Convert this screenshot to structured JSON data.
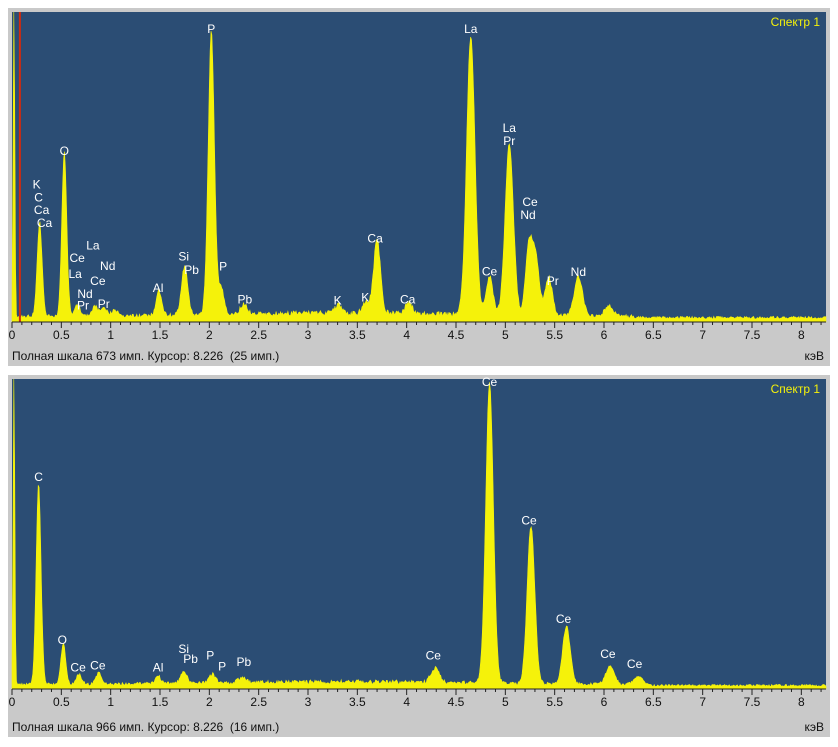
{
  "colors": {
    "plot_bg": "#2b4d74",
    "spectrum": "#f5f20a",
    "peak_label": "#ffffff",
    "title": "#f5f20a",
    "axis_text": "#111111",
    "cursor_line": "#d22a0e"
  },
  "unit_label": "кэВ",
  "chart_data": [
    {
      "type": "area",
      "title": "Спектр 1",
      "xlabel": "кэВ",
      "xlim": [
        0,
        8.25
      ],
      "ylim": [
        0,
        673
      ],
      "x_ticks": [
        0,
        0.5,
        1,
        1.5,
        2,
        2.5,
        3,
        3.5,
        4,
        4.5,
        5,
        5.5,
        6,
        6.5,
        7,
        7.5,
        8
      ],
      "x_tick_labels": [
        "0",
        "0.5",
        "1",
        "1.5",
        "2",
        "2.5",
        "3",
        "3.5",
        "4",
        "4.5",
        "5",
        "5.5",
        "6",
        "6.5",
        "7",
        "7.5",
        "8"
      ],
      "status_text": "Полная шкала 673 имп. Курсор: 8.226  (25 имп.)",
      "cursor_keV": 0.08,
      "peaks": [
        {
          "center": 0.02,
          "height": 700,
          "width": 0.012
        },
        {
          "center": 0.28,
          "height": 205,
          "width": 0.035
        },
        {
          "center": 0.53,
          "height": 355,
          "width": 0.035
        },
        {
          "center": 0.66,
          "height": 25,
          "width": 0.04
        },
        {
          "center": 0.84,
          "height": 22,
          "width": 0.04
        },
        {
          "center": 0.93,
          "height": 20,
          "width": 0.04
        },
        {
          "center": 1.04,
          "height": 14,
          "width": 0.04
        },
        {
          "center": 1.49,
          "height": 55,
          "width": 0.04
        },
        {
          "center": 1.75,
          "height": 105,
          "width": 0.045
        },
        {
          "center": 2.02,
          "height": 615,
          "width": 0.045
        },
        {
          "center": 2.12,
          "height": 60,
          "width": 0.04
        },
        {
          "center": 2.35,
          "height": 22,
          "width": 0.05
        },
        {
          "center": 3.31,
          "height": 18,
          "width": 0.05
        },
        {
          "center": 3.59,
          "height": 24,
          "width": 0.05
        },
        {
          "center": 3.7,
          "height": 160,
          "width": 0.05
        },
        {
          "center": 4.02,
          "height": 25,
          "width": 0.05
        },
        {
          "center": 4.65,
          "height": 605,
          "width": 0.06
        },
        {
          "center": 4.84,
          "height": 82,
          "width": 0.05
        },
        {
          "center": 5.04,
          "height": 370,
          "width": 0.06
        },
        {
          "center": 5.24,
          "height": 150,
          "width": 0.05
        },
        {
          "center": 5.31,
          "height": 120,
          "width": 0.05
        },
        {
          "center": 5.44,
          "height": 85,
          "width": 0.05
        },
        {
          "center": 5.74,
          "height": 85,
          "width": 0.06
        },
        {
          "center": 6.05,
          "height": 22,
          "width": 0.06
        }
      ],
      "baseline": 12,
      "labels": [
        {
          "text": "K",
          "x": 0.25,
          "y": 290
        },
        {
          "text": "C",
          "x": 0.27,
          "y": 262
        },
        {
          "text": "Ca",
          "x": 0.3,
          "y": 234
        },
        {
          "text": "Ca",
          "x": 0.33,
          "y": 206
        },
        {
          "text": "O",
          "x": 0.53,
          "y": 363
        },
        {
          "text": "Ce",
          "x": 0.66,
          "y": 130
        },
        {
          "text": "La",
          "x": 0.82,
          "y": 157
        },
        {
          "text": "Nd",
          "x": 0.97,
          "y": 113
        },
        {
          "text": "La",
          "x": 0.64,
          "y": 95
        },
        {
          "text": "Ce",
          "x": 0.87,
          "y": 80
        },
        {
          "text": "Nd",
          "x": 0.74,
          "y": 52
        },
        {
          "text": "Pr",
          "x": 0.72,
          "y": 27
        },
        {
          "text": "Pr",
          "x": 0.93,
          "y": 30
        },
        {
          "text": "Al",
          "x": 1.48,
          "y": 65
        },
        {
          "text": "Si",
          "x": 1.74,
          "y": 133
        },
        {
          "text": "Pb",
          "x": 1.82,
          "y": 104
        },
        {
          "text": "P",
          "x": 2.02,
          "y": 627
        },
        {
          "text": "P",
          "x": 2.14,
          "y": 112
        },
        {
          "text": "Pb",
          "x": 2.36,
          "y": 40
        },
        {
          "text": "K",
          "x": 3.3,
          "y": 38
        },
        {
          "text": "K",
          "x": 3.58,
          "y": 44
        },
        {
          "text": "Ca",
          "x": 3.68,
          "y": 173
        },
        {
          "text": "Ca",
          "x": 4.01,
          "y": 40
        },
        {
          "text": "La",
          "x": 4.65,
          "y": 627
        },
        {
          "text": "Ce",
          "x": 4.84,
          "y": 101
        },
        {
          "text": "La",
          "x": 5.04,
          "y": 412
        },
        {
          "text": "Pr",
          "x": 5.04,
          "y": 384
        },
        {
          "text": "Ce",
          "x": 5.25,
          "y": 252
        },
        {
          "text": "Nd",
          "x": 5.23,
          "y": 224
        },
        {
          "text": "Pr",
          "x": 5.48,
          "y": 80
        },
        {
          "text": "Nd",
          "x": 5.74,
          "y": 100
        }
      ]
    },
    {
      "type": "area",
      "title": "Спектр 1",
      "xlabel": "кэВ",
      "xlim": [
        0,
        8.25
      ],
      "ylim": [
        0,
        966
      ],
      "x_ticks": [
        0,
        0.5,
        1,
        1.5,
        2,
        2.5,
        3,
        3.5,
        4,
        4.5,
        5,
        5.5,
        6,
        6.5,
        7,
        7.5,
        8
      ],
      "x_tick_labels": [
        "0",
        "0.5",
        "1",
        "1.5",
        "2",
        "2.5",
        "3",
        "3.5",
        "4",
        "4.5",
        "5",
        "5.5",
        "6",
        "6.5",
        "7",
        "7.5",
        "8"
      ],
      "status_text": "Полная шкала 966 имп. Курсор: 8.226  (16 имп.)",
      "peaks": [
        {
          "center": 0.02,
          "height": 1000,
          "width": 0.012
        },
        {
          "center": 0.27,
          "height": 630,
          "width": 0.035
        },
        {
          "center": 0.52,
          "height": 125,
          "width": 0.035
        },
        {
          "center": 0.68,
          "height": 30,
          "width": 0.04
        },
        {
          "center": 0.88,
          "height": 35,
          "width": 0.04
        },
        {
          "center": 1.48,
          "height": 24,
          "width": 0.04
        },
        {
          "center": 1.74,
          "height": 40,
          "width": 0.045
        },
        {
          "center": 2.03,
          "height": 28,
          "width": 0.045
        },
        {
          "center": 2.33,
          "height": 18,
          "width": 0.05
        },
        {
          "center": 4.29,
          "height": 45,
          "width": 0.06
        },
        {
          "center": 4.84,
          "height": 935,
          "width": 0.055
        },
        {
          "center": 5.26,
          "height": 490,
          "width": 0.055
        },
        {
          "center": 5.62,
          "height": 180,
          "width": 0.055
        },
        {
          "center": 6.06,
          "height": 55,
          "width": 0.06
        },
        {
          "center": 6.35,
          "height": 28,
          "width": 0.06
        }
      ],
      "baseline": 14,
      "labels": [
        {
          "text": "Ce",
          "x": 4.84,
          "y": 945
        },
        {
          "text": "C",
          "x": 0.27,
          "y": 648
        },
        {
          "text": "O",
          "x": 0.51,
          "y": 140
        },
        {
          "text": "Ce",
          "x": 0.67,
          "y": 54
        },
        {
          "text": "Ce",
          "x": 0.87,
          "y": 60
        },
        {
          "text": "Al",
          "x": 1.48,
          "y": 54
        },
        {
          "text": "Si",
          "x": 1.74,
          "y": 112
        },
        {
          "text": "Pb",
          "x": 1.81,
          "y": 81
        },
        {
          "text": "P",
          "x": 2.01,
          "y": 92
        },
        {
          "text": "P",
          "x": 2.13,
          "y": 58
        },
        {
          "text": "Pb",
          "x": 2.35,
          "y": 72
        },
        {
          "text": "Ce",
          "x": 4.27,
          "y": 92
        },
        {
          "text": "Ce",
          "x": 5.24,
          "y": 513
        },
        {
          "text": "Ce",
          "x": 5.59,
          "y": 205
        },
        {
          "text": "Ce",
          "x": 6.04,
          "y": 97
        },
        {
          "text": "Ce",
          "x": 6.31,
          "y": 65
        }
      ]
    }
  ]
}
